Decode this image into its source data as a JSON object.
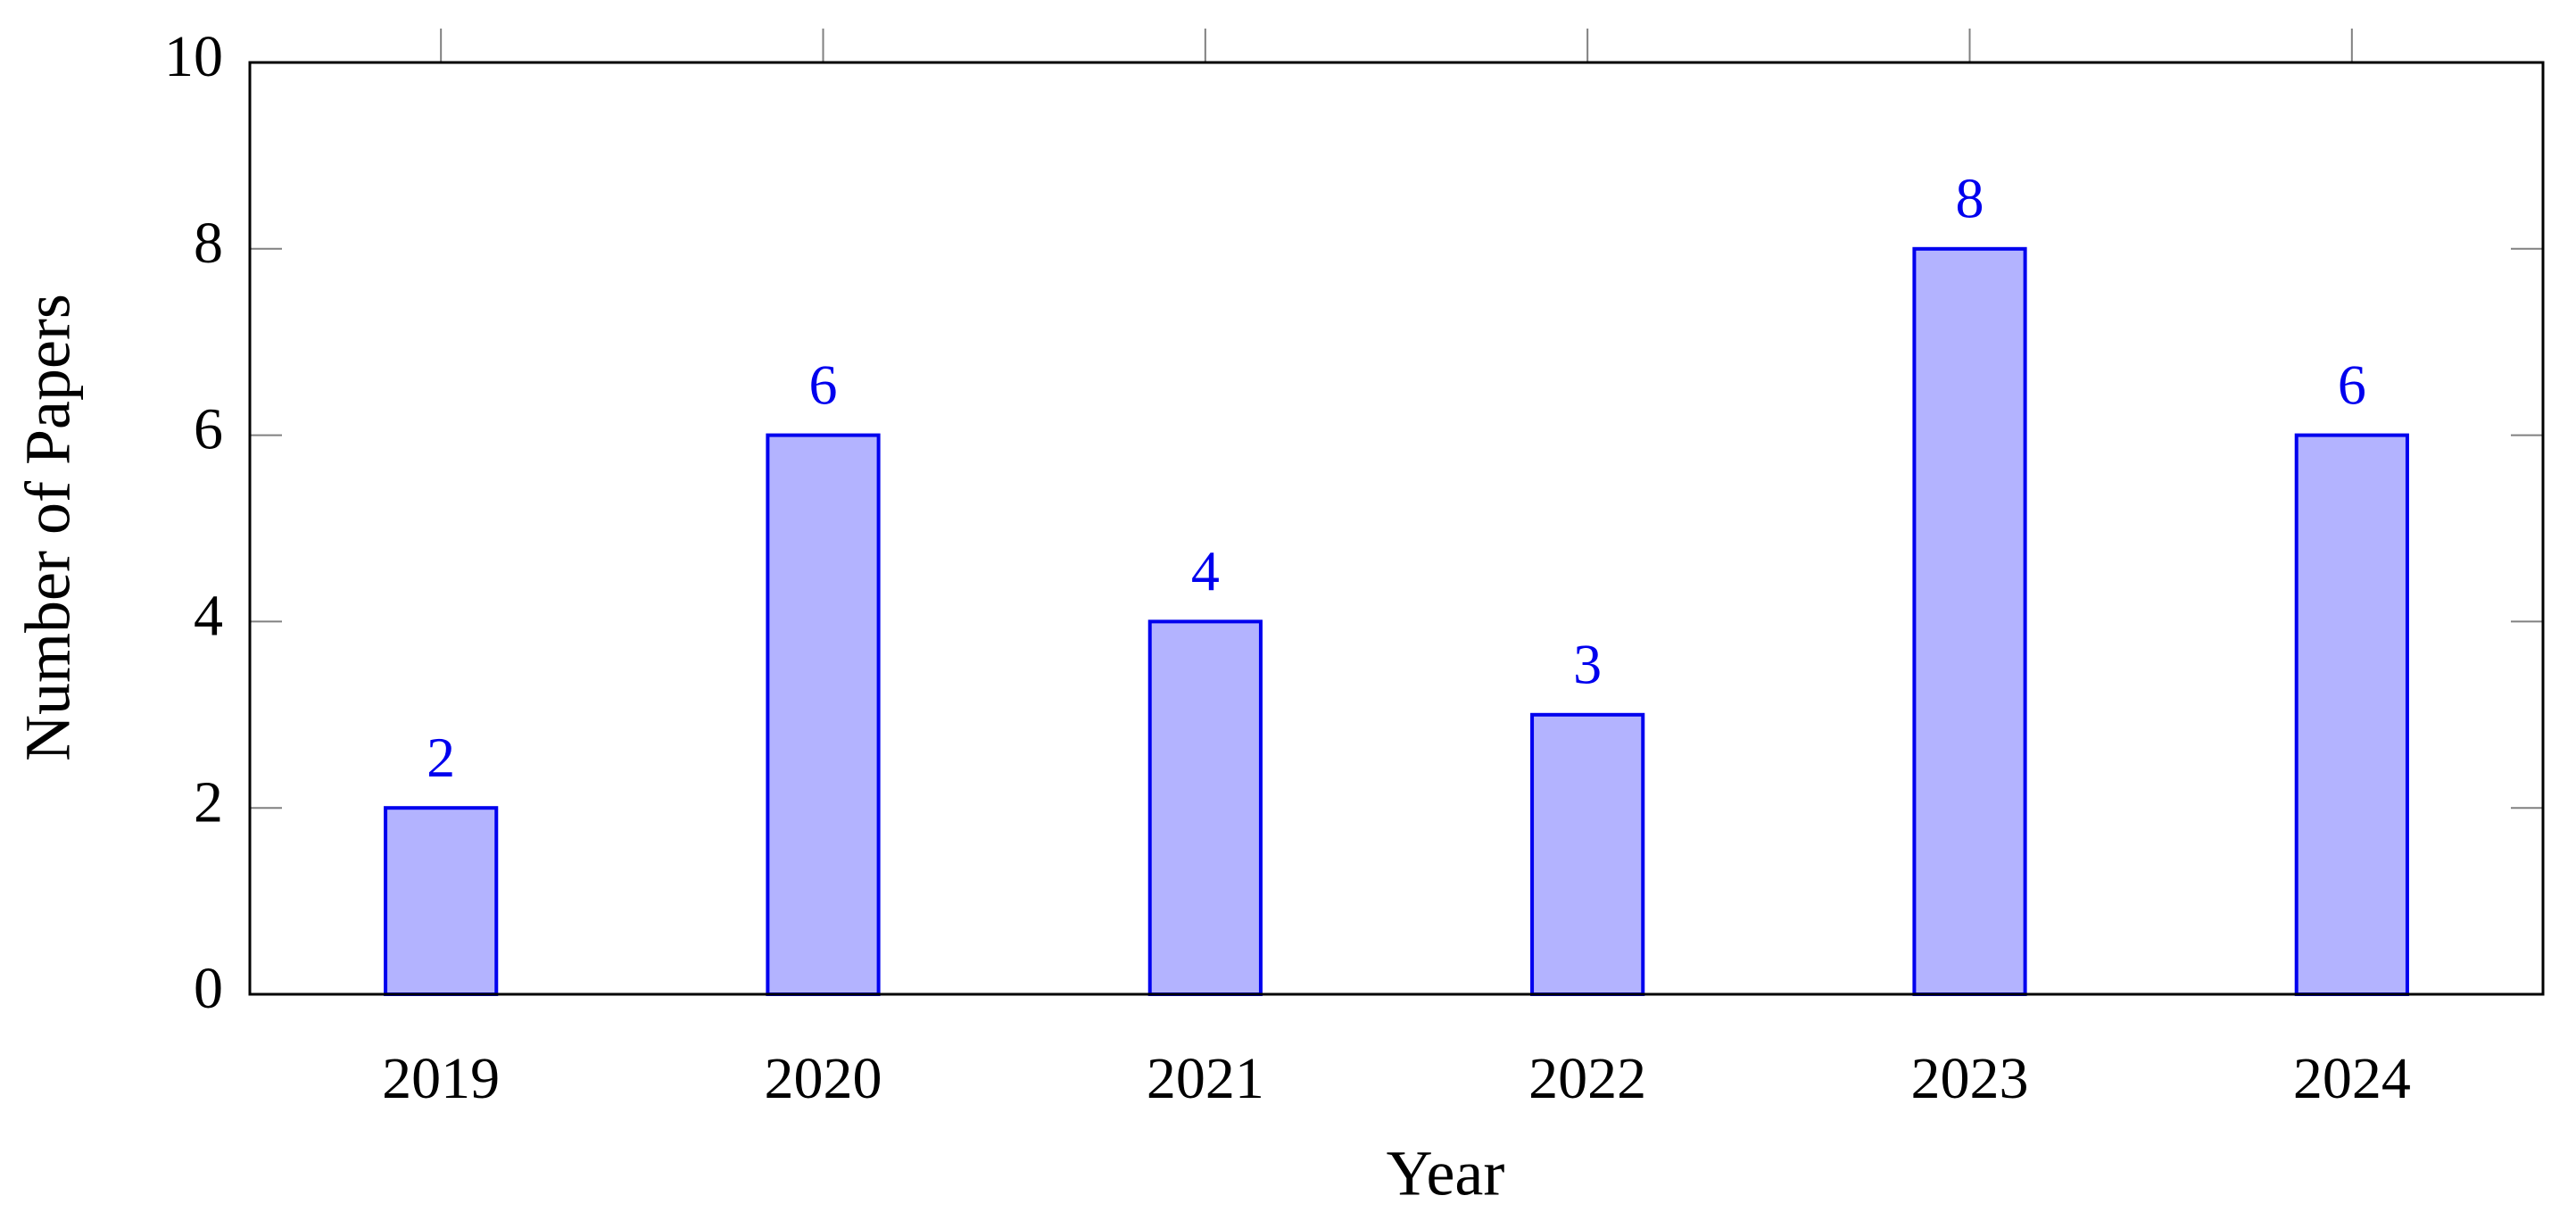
{
  "chart_data": {
    "type": "bar",
    "xlabel": "Year",
    "ylabel": "Number of Papers",
    "categories": [
      "2019",
      "2020",
      "2021",
      "2022",
      "2023",
      "2024"
    ],
    "values": [
      2,
      6,
      4,
      3,
      8,
      6
    ],
    "color": "#b3b3ff",
    "edge_color": "#0000ee",
    "label_color": "#0000ee",
    "ylim": [
      0,
      10
    ],
    "yticks": [
      0,
      2,
      4,
      6,
      8,
      10
    ]
  }
}
